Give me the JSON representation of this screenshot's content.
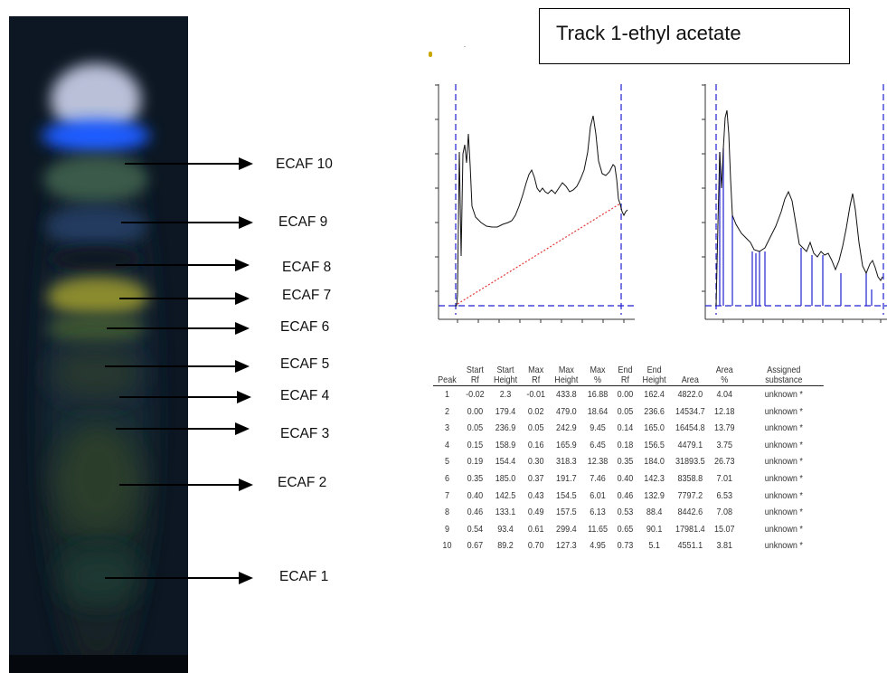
{
  "figure": {
    "title": "Track 1-ethyl acetate",
    "fraction_labels": [
      "ECAF 10",
      "ECAF 9",
      "ECAF 8",
      "ECAF 7",
      "ECAF 6",
      "ECAF 5",
      "ECAF 4",
      "ECAF 3",
      "ECAF 2",
      "ECAF 1"
    ]
  },
  "table": {
    "headers": [
      [
        "Peak"
      ],
      [
        "Start",
        "Rf"
      ],
      [
        "Start",
        "Height"
      ],
      [
        "Max",
        "Rf"
      ],
      [
        "Max",
        "Height"
      ],
      [
        "Max",
        "%"
      ],
      [
        "End",
        "Rf"
      ],
      [
        "End",
        "Height"
      ],
      [
        "Area"
      ],
      [
        "Area",
        "%"
      ],
      [
        "Assigned substance"
      ]
    ],
    "rows": [
      [
        "1",
        "-0.02",
        "2.3",
        "-0.01",
        "433.8",
        "16.88",
        "0.00",
        "162.4",
        "4822.0",
        "4.04",
        "unknown *"
      ],
      [
        "2",
        "0.00",
        "179.4",
        "0.02",
        "479.0",
        "18.64",
        "0.05",
        "236.6",
        "14534.7",
        "12.18",
        "unknown *"
      ],
      [
        "3",
        "0.05",
        "236.9",
        "0.05",
        "242.9",
        "9.45",
        "0.14",
        "165.0",
        "16454.8",
        "13.79",
        "unknown *"
      ],
      [
        "4",
        "0.15",
        "158.9",
        "0.16",
        "165.9",
        "6.45",
        "0.18",
        "156.5",
        "4479.1",
        "3.75",
        "unknown *"
      ],
      [
        "5",
        "0.19",
        "154.4",
        "0.30",
        "318.3",
        "12.38",
        "0.35",
        "184.0",
        "31893.5",
        "26.73",
        "unknown *"
      ],
      [
        "6",
        "0.35",
        "185.0",
        "0.37",
        "191.7",
        "7.46",
        "0.40",
        "142.3",
        "8358.8",
        "7.01",
        "unknown *"
      ],
      [
        "7",
        "0.40",
        "142.5",
        "0.43",
        "154.5",
        "6.01",
        "0.46",
        "132.9",
        "7797.2",
        "6.53",
        "unknown *"
      ],
      [
        "8",
        "0.46",
        "133.1",
        "0.49",
        "157.5",
        "6.13",
        "0.53",
        "88.4",
        "8442.6",
        "7.08",
        "unknown *"
      ],
      [
        "9",
        "0.54",
        "93.4",
        "0.61",
        "299.4",
        "11.65",
        "0.65",
        "90.1",
        "17981.4",
        "15.07",
        "unknown *"
      ],
      [
        "10",
        "0.67",
        "89.2",
        "0.70",
        "127.3",
        "4.95",
        "0.73",
        "5.1",
        "4551.1",
        "3.81",
        "unknown *"
      ]
    ]
  },
  "colors": {
    "baseline": "#e23a3a",
    "markers": "#2020d0",
    "trace": "#111111"
  }
}
